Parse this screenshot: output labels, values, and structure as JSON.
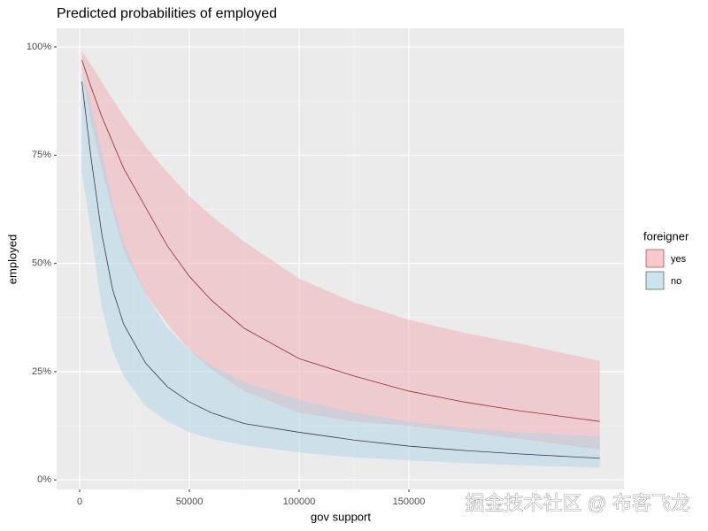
{
  "chart_data": {
    "type": "line_ribbon",
    "title": "Predicted probabilities of employed",
    "x_label": "gov support",
    "y_label": "employed",
    "legend_title": "foreigner",
    "watermark": "掘金技术社区 @ 布客飞龙",
    "x": [
      1000,
      5000,
      10000,
      15000,
      20000,
      30000,
      40000,
      50000,
      60000,
      75000,
      100000,
      125000,
      150000,
      175000,
      200000,
      237000
    ],
    "series": [
      {
        "name": "yes",
        "color": "#8b2f35",
        "fill": "#f2a3aa",
        "values": [
          97,
          91,
          84,
          78,
          72,
          63,
          54,
          47,
          41.5,
          35,
          28,
          24,
          20.5,
          18,
          16,
          13.5
        ],
        "upper": [
          99,
          96,
          92,
          88,
          84,
          77,
          71,
          65.5,
          61,
          55,
          46.5,
          41,
          37,
          34,
          31.5,
          27.5
        ],
        "lower": [
          95,
          83,
          72,
          62,
          53,
          43,
          36,
          30,
          25.5,
          20.5,
          15.5,
          13.5,
          12.5,
          11,
          9.5,
          7
        ]
      },
      {
        "name": "no",
        "color": "#3a3a44",
        "fill": "#a9d3e6",
        "values": [
          92,
          75,
          57,
          44,
          36,
          27,
          21.5,
          18,
          15.5,
          13,
          11,
          9.2,
          7.8,
          6.8,
          6,
          5
        ],
        "upper": [
          94,
          87,
          76,
          64,
          55,
          43,
          35,
          30,
          26.5,
          22.5,
          18.5,
          15.5,
          13.5,
          12,
          11,
          10
        ],
        "lower": [
          71,
          58,
          40,
          30,
          24,
          17,
          13.5,
          11,
          9.5,
          8,
          6.3,
          5.2,
          4.5,
          3.9,
          3.4,
          2.8
        ]
      }
    ],
    "xlim": [
      -10500,
      248000
    ],
    "xticks": [
      0,
      50000,
      100000,
      150000
    ],
    "ylim": [
      -2.2,
      104.3
    ],
    "yticks": [
      {
        "value": 0,
        "label": "0%"
      },
      {
        "value": 25,
        "label": "25%"
      },
      {
        "value": 50,
        "label": "50%"
      },
      {
        "value": 75,
        "label": "75%"
      },
      {
        "value": 100,
        "label": "100%"
      }
    ],
    "grid": true,
    "legend": "right"
  }
}
